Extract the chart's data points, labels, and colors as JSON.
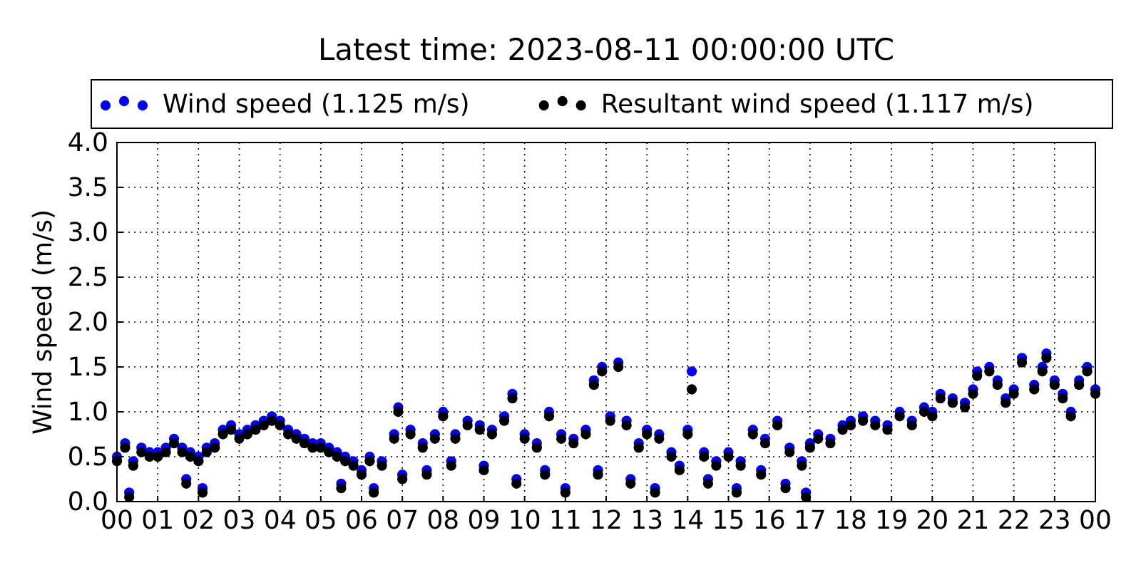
{
  "chart_data": {
    "type": "scatter",
    "title": "Latest time: 2023-08-11 00:00:00 UTC",
    "ylabel": "Wind speed (m/s)",
    "xlim": [
      0,
      24
    ],
    "ylim": [
      0,
      4
    ],
    "xticks": [
      {
        "value": 0,
        "label": "00"
      },
      {
        "value": 1,
        "label": "01"
      },
      {
        "value": 2,
        "label": "02"
      },
      {
        "value": 3,
        "label": "03"
      },
      {
        "value": 4,
        "label": "04"
      },
      {
        "value": 5,
        "label": "05"
      },
      {
        "value": 6,
        "label": "06"
      },
      {
        "value": 7,
        "label": "07"
      },
      {
        "value": 8,
        "label": "08"
      },
      {
        "value": 9,
        "label": "09"
      },
      {
        "value": 10,
        "label": "10"
      },
      {
        "value": 11,
        "label": "11"
      },
      {
        "value": 12,
        "label": "12"
      },
      {
        "value": 13,
        "label": "13"
      },
      {
        "value": 14,
        "label": "14"
      },
      {
        "value": 15,
        "label": "15"
      },
      {
        "value": 16,
        "label": "16"
      },
      {
        "value": 17,
        "label": "17"
      },
      {
        "value": 18,
        "label": "18"
      },
      {
        "value": 19,
        "label": "19"
      },
      {
        "value": 20,
        "label": "20"
      },
      {
        "value": 21,
        "label": "21"
      },
      {
        "value": 22,
        "label": "22"
      },
      {
        "value": 23,
        "label": "23"
      },
      {
        "value": 24,
        "label": "00"
      }
    ],
    "yticks": [
      {
        "value": 0,
        "label": "0.0"
      },
      {
        "value": 0.5,
        "label": "0.5"
      },
      {
        "value": 1,
        "label": "1.0"
      },
      {
        "value": 1.5,
        "label": "1.5"
      },
      {
        "value": 2,
        "label": "2.0"
      },
      {
        "value": 2.5,
        "label": "2.5"
      },
      {
        "value": 3,
        "label": "3.0"
      },
      {
        "value": 3.5,
        "label": "3.5"
      },
      {
        "value": 4,
        "label": "4.0"
      }
    ],
    "grid": true,
    "legend": "top",
    "marker": "circle",
    "series": [
      {
        "name": "Wind speed (1.125 m/s)",
        "color": "#0000ff",
        "x": [
          0,
          0.2,
          0.4,
          0.6,
          0.8,
          1,
          1.2,
          1.4,
          1.6,
          1.8,
          2,
          2.2,
          2.4,
          2.6,
          2.8,
          3,
          3.2,
          3.4,
          3.6,
          3.8,
          4,
          4.2,
          4.4,
          4.6,
          4.8,
          5,
          5.2,
          5.4,
          5.6,
          5.8,
          6,
          6.2,
          6.5,
          6.8,
          6.9,
          7.2,
          7.5,
          7.8,
          8,
          8.3,
          8.6,
          8.9,
          9.2,
          9.5,
          9.7,
          10,
          10.3,
          10.6,
          10.9,
          11.2,
          11.5,
          11.7,
          11.9,
          12.1,
          12.3,
          12.5,
          12.8,
          13,
          13.3,
          13.6,
          14,
          14.1,
          14.4,
          14.7,
          15,
          15.3,
          15.6,
          15.9,
          16.2,
          16.5,
          16.8,
          17,
          17.2,
          17.5,
          17.8,
          18,
          18.3,
          18.6,
          18.9,
          19.2,
          19.5,
          19.8,
          20,
          20.2,
          20.5,
          20.8,
          21,
          21.1,
          21.4,
          21.6,
          21.8,
          22,
          22.2,
          22.5,
          22.7,
          22.8,
          23,
          23.2,
          23.4,
          23.6,
          23.8,
          24,
          0.3,
          1.7,
          2.1,
          5.5,
          6.3,
          7,
          7.6,
          8.2,
          9,
          9.8,
          10.5,
          11,
          11.8,
          12.6,
          13.2,
          13.8,
          14.5,
          15.2,
          15.8,
          16.4,
          16.9
        ],
        "values": [
          0.5,
          0.65,
          0.45,
          0.6,
          0.55,
          0.55,
          0.6,
          0.7,
          0.6,
          0.55,
          0.5,
          0.6,
          0.65,
          0.8,
          0.85,
          0.75,
          0.8,
          0.85,
          0.9,
          0.95,
          0.9,
          0.8,
          0.75,
          0.7,
          0.65,
          0.65,
          0.6,
          0.55,
          0.5,
          0.45,
          0.35,
          0.5,
          0.45,
          0.75,
          1.05,
          0.8,
          0.65,
          0.75,
          1.0,
          0.75,
          0.9,
          0.85,
          0.8,
          0.95,
          1.2,
          0.75,
          0.65,
          1.0,
          0.75,
          0.7,
          0.8,
          1.35,
          1.5,
          0.95,
          1.55,
          0.9,
          0.65,
          0.8,
          0.75,
          0.55,
          0.8,
          1.45,
          0.55,
          0.45,
          0.55,
          0.45,
          0.8,
          0.7,
          0.9,
          0.6,
          0.45,
          0.65,
          0.75,
          0.7,
          0.85,
          0.9,
          0.95,
          0.9,
          0.85,
          1.0,
          0.9,
          1.05,
          1.0,
          1.2,
          1.15,
          1.1,
          1.25,
          1.45,
          1.5,
          1.35,
          1.15,
          1.25,
          1.6,
          1.3,
          1.5,
          1.65,
          1.35,
          1.2,
          1.0,
          1.35,
          1.5,
          1.25,
          0.1,
          0.25,
          0.15,
          0.2,
          0.15,
          0.3,
          0.35,
          0.45,
          0.4,
          0.25,
          0.35,
          0.15,
          0.35,
          0.25,
          0.15,
          0.4,
          0.25,
          0.15,
          0.35,
          0.2,
          0.1
        ]
      },
      {
        "name": "Resultant wind speed (1.117 m/s)",
        "color": "#000000",
        "x": [
          0,
          0.2,
          0.4,
          0.6,
          0.8,
          1,
          1.2,
          1.4,
          1.6,
          1.8,
          2,
          2.2,
          2.4,
          2.6,
          2.8,
          3,
          3.2,
          3.4,
          3.6,
          3.8,
          4,
          4.2,
          4.4,
          4.6,
          4.8,
          5,
          5.2,
          5.4,
          5.6,
          5.8,
          6,
          6.2,
          6.5,
          6.8,
          6.9,
          7.2,
          7.5,
          7.8,
          8,
          8.3,
          8.6,
          8.9,
          9.2,
          9.5,
          9.7,
          10,
          10.3,
          10.6,
          10.9,
          11.2,
          11.5,
          11.7,
          11.9,
          12.1,
          12.3,
          12.5,
          12.8,
          13,
          13.3,
          13.6,
          14,
          14.1,
          14.4,
          14.7,
          15,
          15.3,
          15.6,
          15.9,
          16.2,
          16.5,
          16.8,
          17,
          17.2,
          17.5,
          17.8,
          18,
          18.3,
          18.6,
          18.9,
          19.2,
          19.5,
          19.8,
          20,
          20.2,
          20.5,
          20.8,
          21,
          21.1,
          21.4,
          21.6,
          21.8,
          22,
          22.2,
          22.5,
          22.7,
          22.8,
          23,
          23.2,
          23.4,
          23.6,
          23.8,
          24,
          0.3,
          1.7,
          2.1,
          5.5,
          6.3,
          7,
          7.6,
          8.2,
          9,
          9.8,
          10.5,
          11,
          11.8,
          12.6,
          13.2,
          13.8,
          14.5,
          15.2,
          15.8,
          16.4,
          16.9
        ],
        "values": [
          0.45,
          0.6,
          0.4,
          0.55,
          0.5,
          0.5,
          0.55,
          0.65,
          0.55,
          0.5,
          0.45,
          0.55,
          0.6,
          0.75,
          0.8,
          0.7,
          0.75,
          0.8,
          0.85,
          0.9,
          0.85,
          0.75,
          0.7,
          0.65,
          0.6,
          0.6,
          0.55,
          0.5,
          0.45,
          0.4,
          0.3,
          0.45,
          0.4,
          0.7,
          1.0,
          0.75,
          0.6,
          0.7,
          0.95,
          0.7,
          0.85,
          0.8,
          0.75,
          0.9,
          1.15,
          0.7,
          0.6,
          0.95,
          0.7,
          0.65,
          0.75,
          1.3,
          1.45,
          0.9,
          1.5,
          0.85,
          0.6,
          0.75,
          0.7,
          0.5,
          0.75,
          1.25,
          0.5,
          0.4,
          0.5,
          0.4,
          0.75,
          0.65,
          0.85,
          0.55,
          0.4,
          0.6,
          0.7,
          0.65,
          0.8,
          0.85,
          0.9,
          0.85,
          0.8,
          0.95,
          0.85,
          1.0,
          0.95,
          1.15,
          1.1,
          1.05,
          1.2,
          1.4,
          1.45,
          1.3,
          1.1,
          1.2,
          1.55,
          1.25,
          1.45,
          1.6,
          1.3,
          1.15,
          0.95,
          1.3,
          1.45,
          1.2,
          0.05,
          0.2,
          0.1,
          0.15,
          0.1,
          0.25,
          0.3,
          0.4,
          0.35,
          0.2,
          0.3,
          0.1,
          0.3,
          0.2,
          0.1,
          0.35,
          0.2,
          0.1,
          0.3,
          0.15,
          0.05
        ]
      }
    ]
  }
}
